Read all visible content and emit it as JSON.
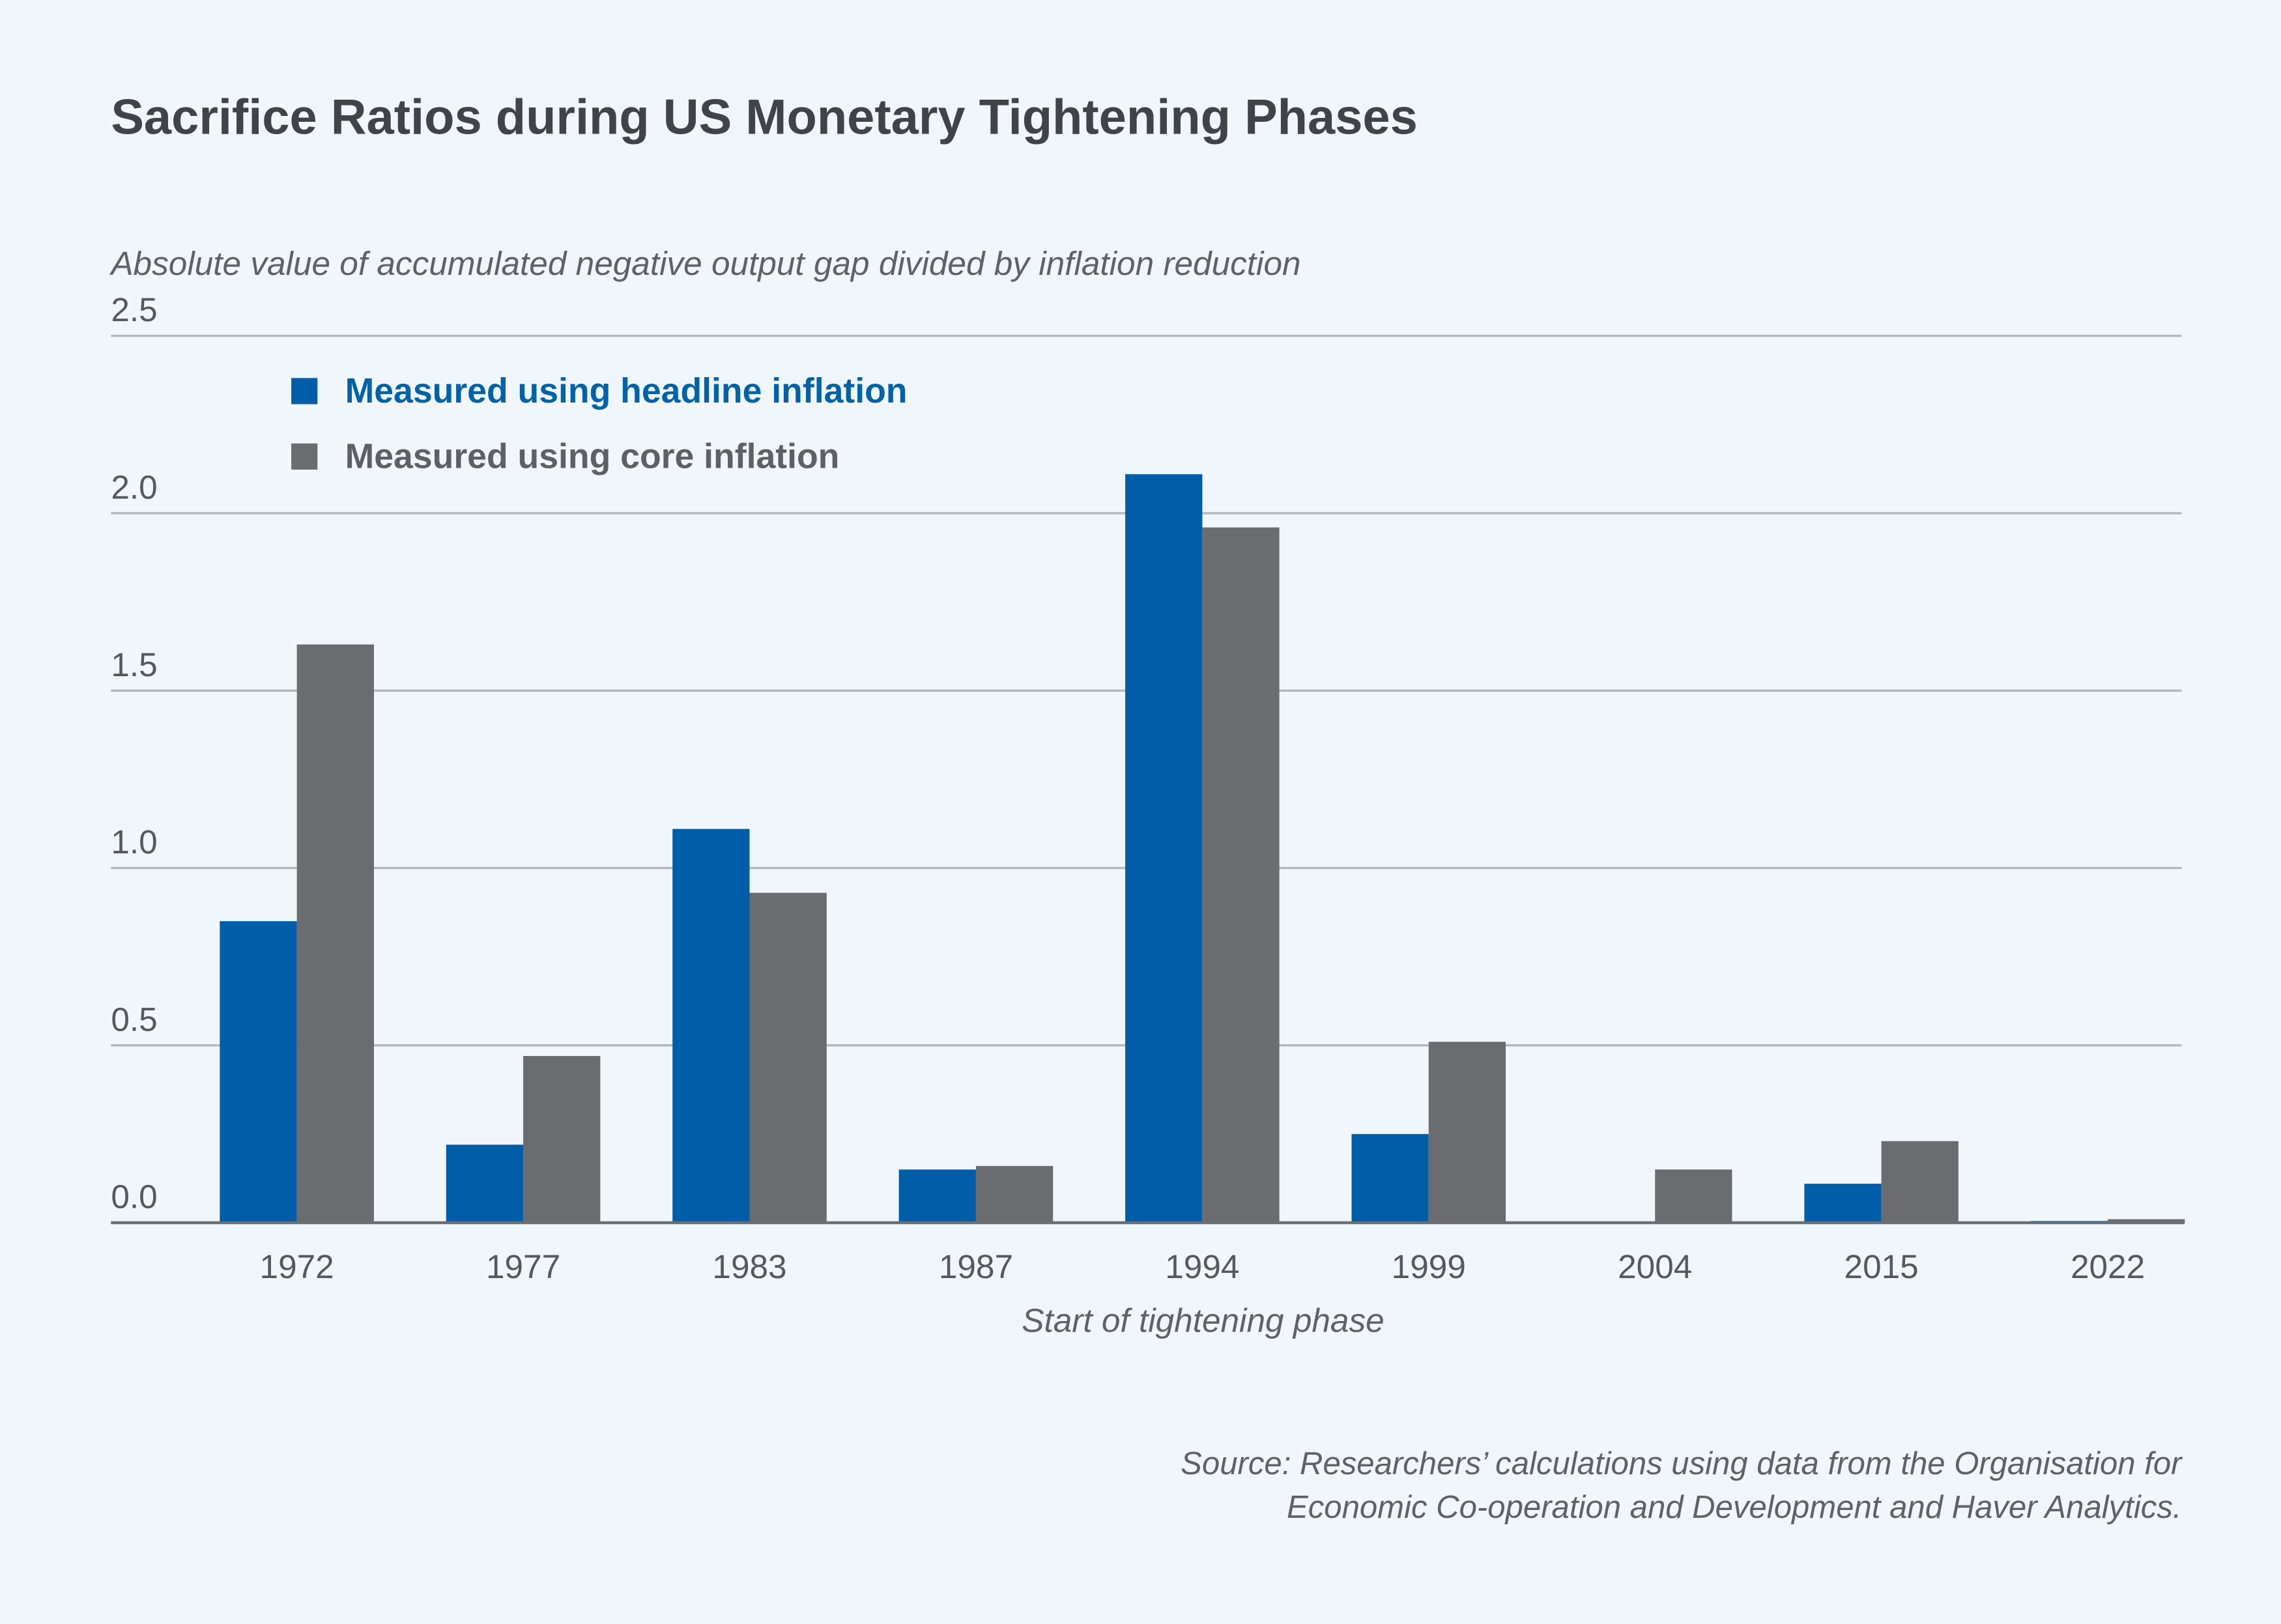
{
  "chart_data": {
    "type": "bar",
    "title": "Sacrifice Ratios during US Monetary Tightening Phases",
    "y_label": "Absolute value of accumulated negative output gap divided by inflation reduction",
    "x_label": "Start of tightening phase",
    "categories": [
      "1972",
      "1977",
      "1983",
      "1987",
      "1994",
      "1999",
      "2004",
      "2015",
      "2022"
    ],
    "series": [
      {
        "name": "Measured using headline inflation",
        "color": "#005ea8",
        "values": [
          0.85,
          0.22,
          1.11,
          0.15,
          2.11,
          0.25,
          null,
          0.11,
          0.005
        ]
      },
      {
        "name": "Measured using core inflation",
        "color": "#6b6c70",
        "values": [
          1.63,
          0.47,
          0.93,
          0.16,
          1.96,
          0.51,
          0.15,
          0.23,
          0.01
        ]
      }
    ],
    "ylim": [
      0,
      2.5
    ],
    "yticks": [
      {
        "value": 0,
        "label": "0.0"
      },
      0.5,
      {
        "value": 1,
        "label": "1.0"
      },
      1.5,
      {
        "value": 2,
        "label": "2.0"
      },
      2.5
    ],
    "grid": true,
    "legend": "top-left",
    "source": [
      "Source: Researchers’ calculations using data from the Organisation for",
      "Economic Co-operation and Development and Haver Analytics."
    ]
  }
}
